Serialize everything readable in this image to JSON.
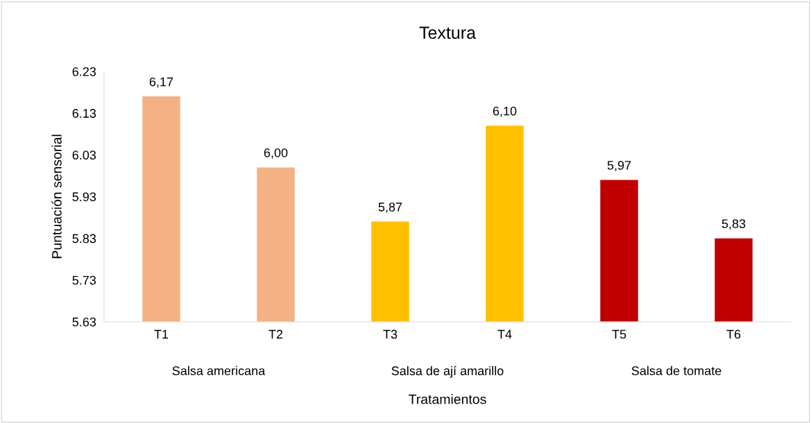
{
  "chart_data": {
    "type": "bar",
    "title": "Textura",
    "xlabel": "Tratamientos",
    "ylabel": "Puntuación sensorial",
    "categories": [
      "T1",
      "T2",
      "T3",
      "T4",
      "T5",
      "T6"
    ],
    "values": [
      6.17,
      6.0,
      5.87,
      6.1,
      5.97,
      5.83
    ],
    "colors": [
      "#f4b183",
      "#f4b183",
      "#ffc000",
      "#ffc000",
      "#c00000",
      "#c00000"
    ],
    "value_labels": [
      "6,17",
      "6,00",
      "5,87",
      "6,10",
      "5,97",
      "5,83"
    ],
    "annotations": [
      "Salsa americana",
      "Salsa de ají amarillo",
      "Salsa de tomate"
    ],
    "ylim": [
      5.63,
      6.23
    ],
    "yticks": [
      5.63,
      5.73,
      5.83,
      5.93,
      6.03,
      6.13,
      6.23
    ],
    "grid": false,
    "legend": false
  }
}
